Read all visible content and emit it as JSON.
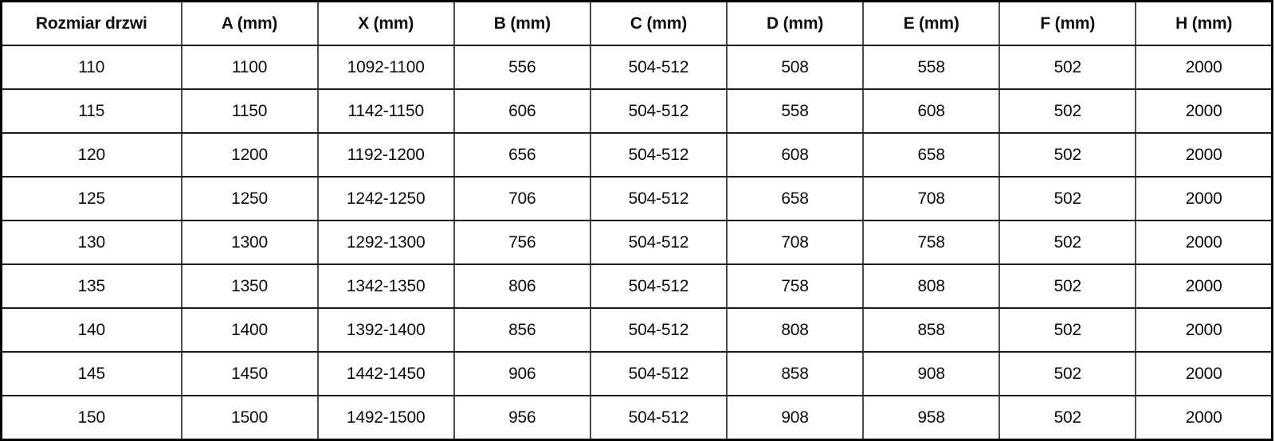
{
  "table": {
    "columns": [
      "Rozmiar drzwi",
      "A (mm)",
      "X (mm)",
      "B (mm)",
      "C (mm)",
      "D (mm)",
      "E (mm)",
      "F (mm)",
      "H (mm)"
    ],
    "rows": [
      [
        "110",
        "1100",
        "1092-1100",
        "556",
        "504-512",
        "508",
        "558",
        "502",
        "2000"
      ],
      [
        "115",
        "1150",
        "1142-1150",
        "606",
        "504-512",
        "558",
        "608",
        "502",
        "2000"
      ],
      [
        "120",
        "1200",
        "1192-1200",
        "656",
        "504-512",
        "608",
        "658",
        "502",
        "2000"
      ],
      [
        "125",
        "1250",
        "1242-1250",
        "706",
        "504-512",
        "658",
        "708",
        "502",
        "2000"
      ],
      [
        "130",
        "1300",
        "1292-1300",
        "756",
        "504-512",
        "708",
        "758",
        "502",
        "2000"
      ],
      [
        "135",
        "1350",
        "1342-1350",
        "806",
        "504-512",
        "758",
        "808",
        "502",
        "2000"
      ],
      [
        "140",
        "1400",
        "1392-1400",
        "856",
        "504-512",
        "808",
        "858",
        "502",
        "2000"
      ],
      [
        "145",
        "1450",
        "1442-1450",
        "906",
        "504-512",
        "858",
        "908",
        "502",
        "2000"
      ],
      [
        "150",
        "1500",
        "1492-1500",
        "956",
        "504-512",
        "908",
        "958",
        "502",
        "2000"
      ]
    ]
  },
  "colors": {
    "background": "#ffffff",
    "text": "#0d0d0d",
    "horizontal_border": "#1c1c1c",
    "vertical_border": "#4d4d4d",
    "outer_border": "#000000"
  }
}
